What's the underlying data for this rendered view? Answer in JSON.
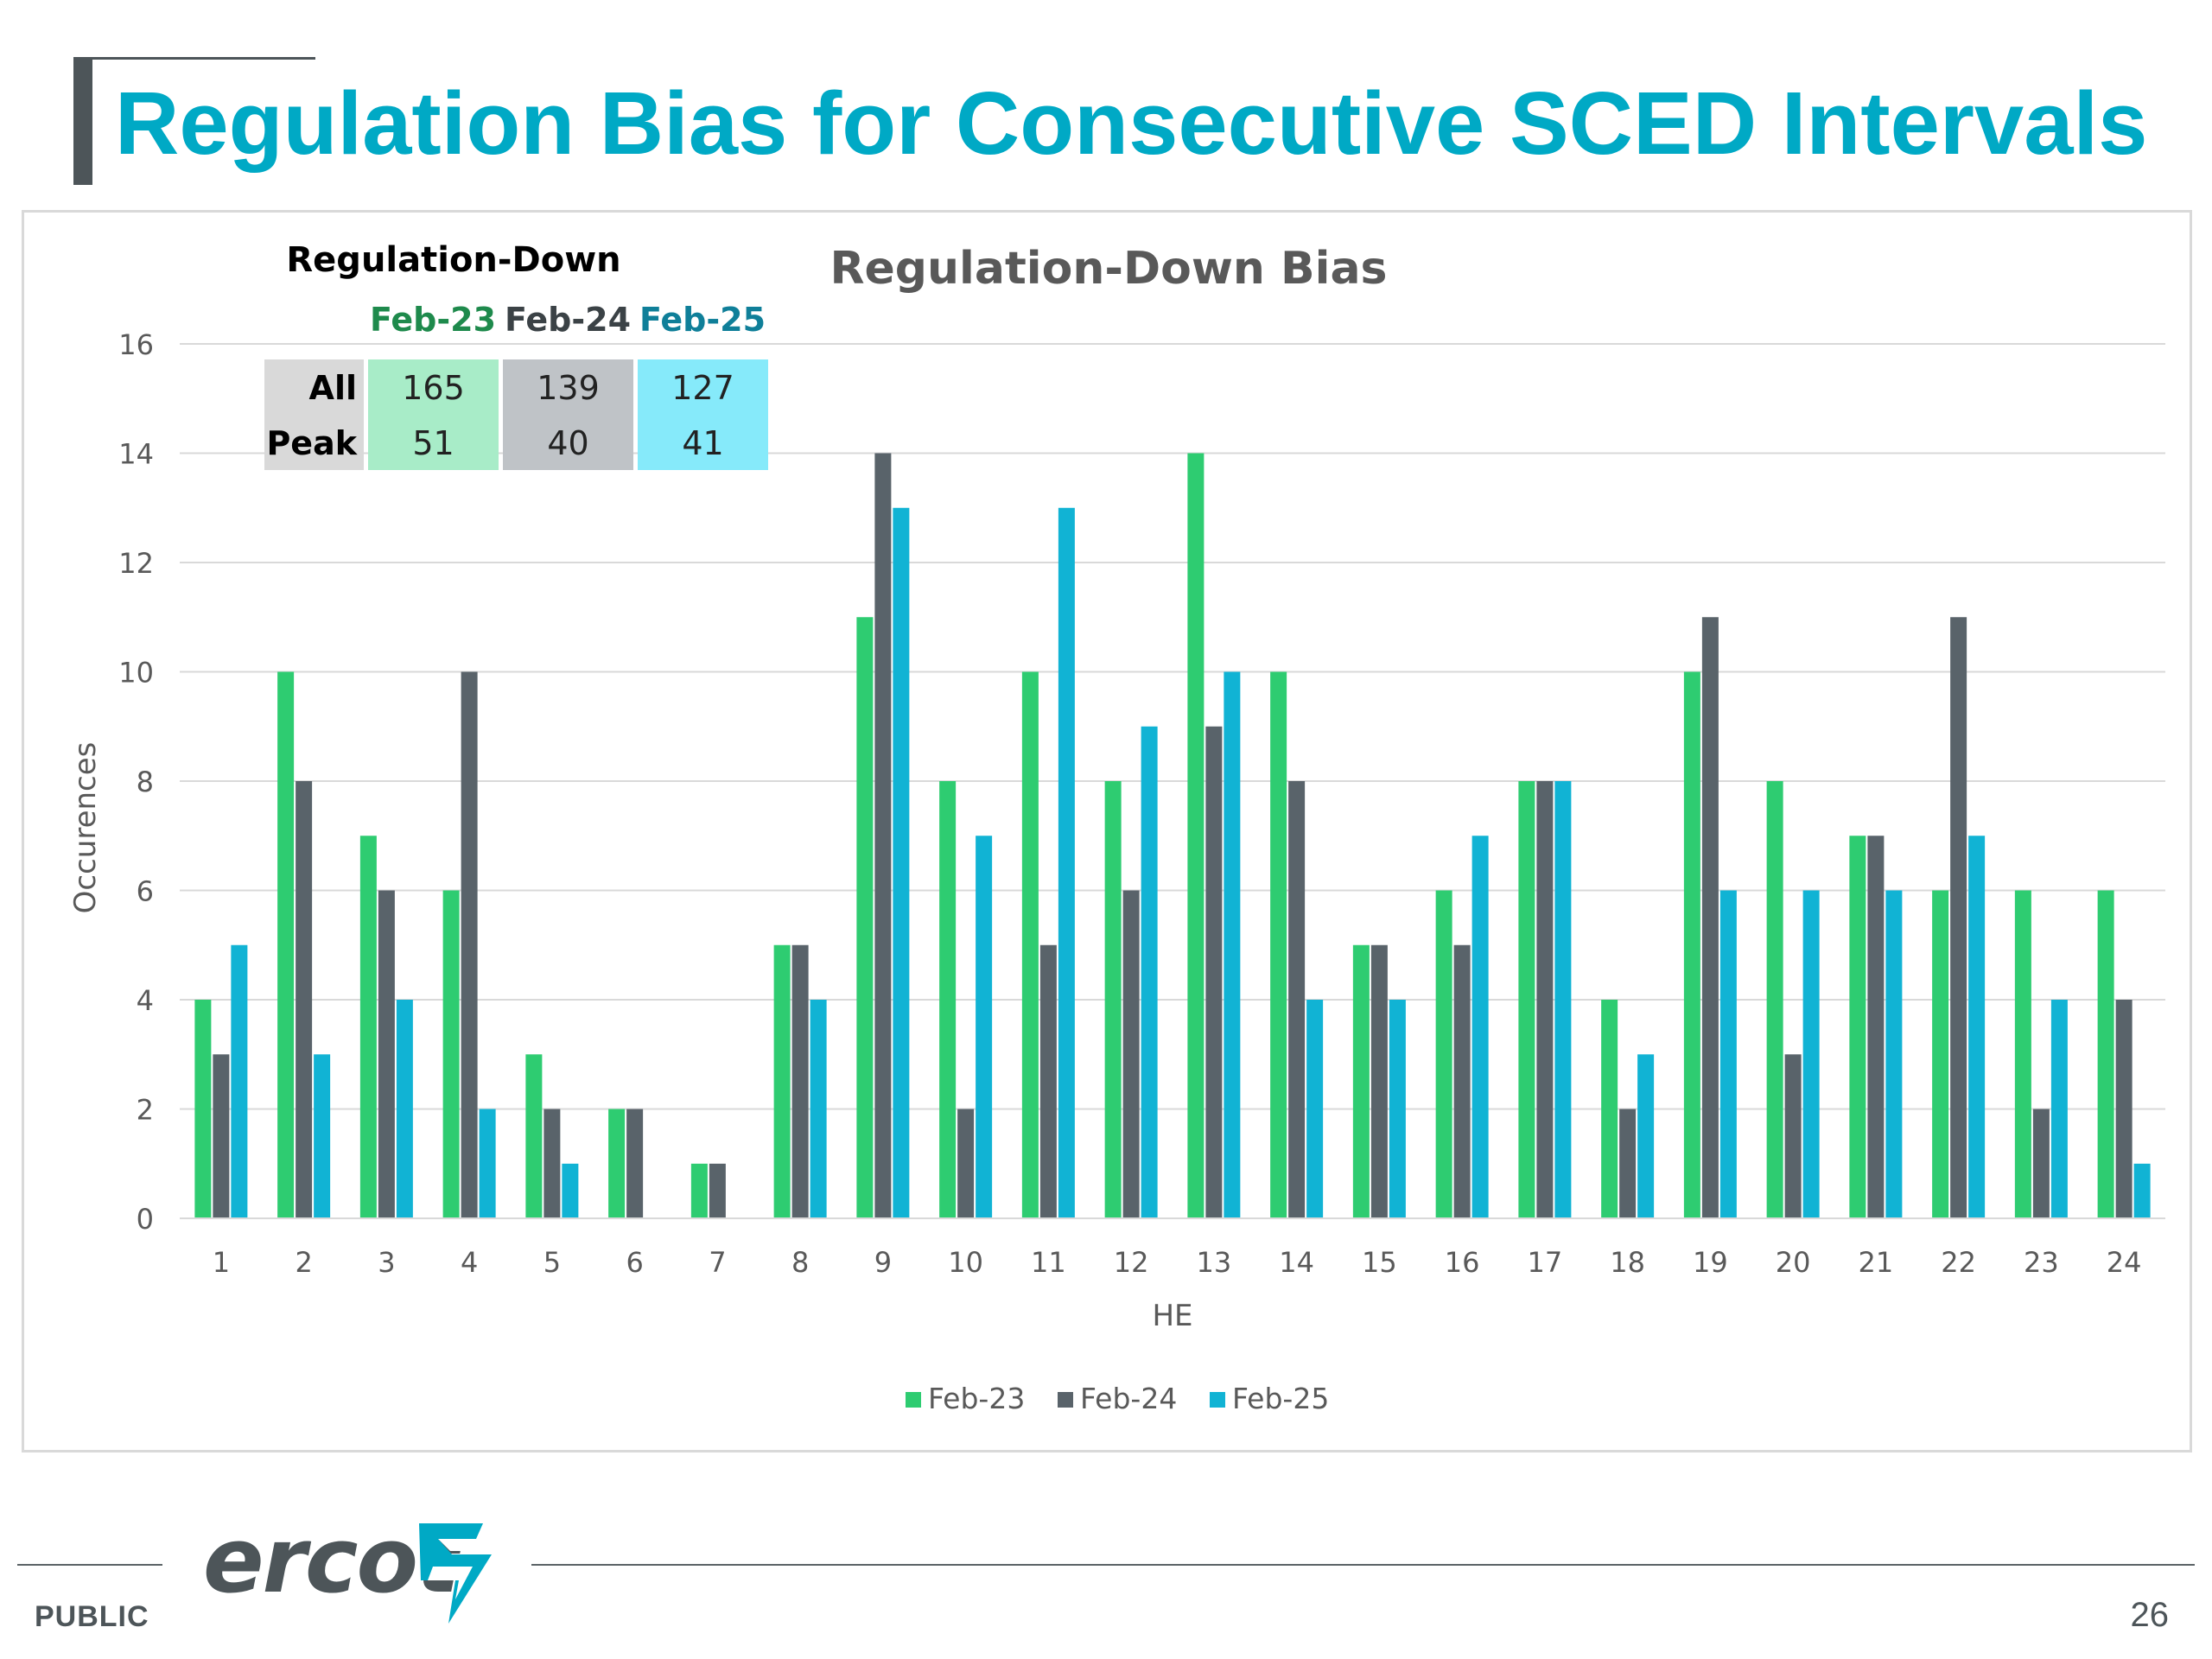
{
  "slide": {
    "title": "Regulation Bias for Consecutive SCED Intervals",
    "footer_label": "PUBLIC",
    "page_number": "26",
    "logo_text": "ercot"
  },
  "colors": {
    "title": "#00a9c5",
    "feb23": "#2ecc71",
    "feb24": "#59636a",
    "feb25": "#11b3d4",
    "grid": "#d9d9d9",
    "axis_text": "#595959"
  },
  "summary_table": {
    "title": "Regulation-Down",
    "columns": [
      "Feb-23",
      "Feb-24",
      "Feb-25"
    ],
    "rows": [
      {
        "label": "All",
        "values": [
          "165",
          "139",
          "127"
        ]
      },
      {
        "label": "Peak",
        "values": [
          "51",
          "40",
          "41"
        ]
      }
    ],
    "column_colors": [
      "#a8ecc8",
      "#bfc3c7",
      "#86eafa"
    ],
    "header_colors": [
      "#1e8a4c",
      "#3b4246",
      "#0f7f99"
    ],
    "label_color": "#d9d9d9"
  },
  "chart_data": {
    "type": "bar",
    "title": "Regulation-Down Bias",
    "xlabel": "HE",
    "ylabel": "Occurences",
    "ylim": [
      0,
      16
    ],
    "yticks": [
      0,
      2,
      4,
      6,
      8,
      10,
      12,
      14,
      16
    ],
    "grid": true,
    "legend_position": "bottom",
    "categories": [
      "1",
      "2",
      "3",
      "4",
      "5",
      "6",
      "7",
      "8",
      "9",
      "10",
      "11",
      "12",
      "13",
      "14",
      "15",
      "16",
      "17",
      "18",
      "19",
      "20",
      "21",
      "22",
      "23",
      "24"
    ],
    "series": [
      {
        "name": "Feb-23",
        "values": [
          4,
          10,
          7,
          6,
          3,
          2,
          1,
          5,
          11,
          8,
          10,
          8,
          14,
          10,
          5,
          6,
          8,
          4,
          10,
          8,
          7,
          6,
          6,
          6
        ]
      },
      {
        "name": "Feb-24",
        "values": [
          3,
          8,
          6,
          10,
          2,
          2,
          1,
          5,
          14,
          2,
          5,
          6,
          9,
          8,
          5,
          5,
          8,
          2,
          11,
          3,
          7,
          11,
          2,
          4
        ]
      },
      {
        "name": "Feb-25",
        "values": [
          5,
          3,
          4,
          2,
          1,
          0,
          0,
          4,
          13,
          7,
          13,
          9,
          10,
          4,
          4,
          7,
          8,
          3,
          6,
          6,
          6,
          7,
          4,
          1
        ]
      }
    ]
  }
}
